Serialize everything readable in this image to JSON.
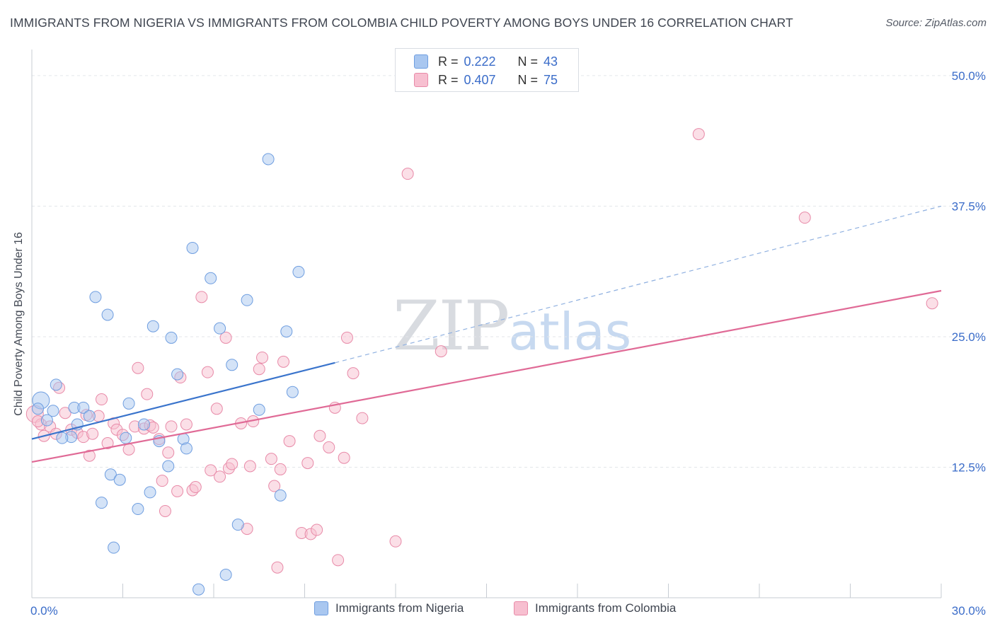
{
  "title": "IMMIGRANTS FROM NIGERIA VS IMMIGRANTS FROM COLOMBIA CHILD POVERTY AMONG BOYS UNDER 16 CORRELATION CHART",
  "source": "Source: ZipAtlas.com",
  "watermark": {
    "zip": "ZIP",
    "atlas": "atlas"
  },
  "legend_top": {
    "rows": [
      {
        "r_label": "R =",
        "r_value": "0.222",
        "n_label": "N =",
        "n_value": "43"
      },
      {
        "r_label": "R =",
        "r_value": "0.407",
        "n_label": "N =",
        "n_value": "75"
      }
    ]
  },
  "chart_data": {
    "type": "scatter",
    "title": "IMMIGRANTS FROM NIGERIA VS IMMIGRANTS FROM COLOMBIA CHILD POVERTY AMONG BOYS UNDER 16 CORRELATION CHART",
    "xlabel": "",
    "ylabel": "Child Poverty Among Boys Under 16",
    "xlim": [
      0,
      30
    ],
    "ylim": [
      0,
      52.5
    ],
    "x_tick_labels": [
      "0.0%",
      "30.0%"
    ],
    "y_tick_labels": [
      "12.5%",
      "25.0%",
      "37.5%",
      "50.0%"
    ],
    "y_tick_values": [
      12.5,
      25,
      37.5,
      50
    ],
    "grid": true,
    "legend_position": "bottom",
    "colors": {
      "nigeria_fill": "#a9c7f0",
      "nigeria_stroke": "#6f9ee0",
      "nigeria_line": "#3a74cc",
      "colombia_fill": "#f7bfd0",
      "colombia_stroke": "#e88aa8",
      "colombia_line": "#e06a96",
      "tick_label": "#3a6cc9"
    },
    "series": [
      {
        "name": "Immigrants from Nigeria",
        "r": 0.222,
        "n": 43,
        "trend": {
          "x0": 0,
          "y0": 15.2,
          "x1": 10,
          "y1": 22.5,
          "dash_to_x": 30,
          "dash_to_y": 37.5
        },
        "points": [
          [
            0.3,
            18.9
          ],
          [
            0.2,
            18.1
          ],
          [
            0.7,
            17.9
          ],
          [
            0.5,
            17.0
          ],
          [
            0.8,
            20.4
          ],
          [
            1.4,
            18.2
          ],
          [
            1.7,
            18.2
          ],
          [
            1.9,
            17.4
          ],
          [
            1.5,
            16.6
          ],
          [
            1.3,
            15.4
          ],
          [
            1.0,
            15.3
          ],
          [
            2.1,
            28.8
          ],
          [
            2.5,
            27.1
          ],
          [
            3.2,
            18.6
          ],
          [
            3.7,
            16.6
          ],
          [
            3.1,
            15.3
          ],
          [
            4.2,
            15.0
          ],
          [
            4.0,
            26.0
          ],
          [
            4.6,
            24.9
          ],
          [
            4.8,
            21.4
          ],
          [
            4.5,
            12.6
          ],
          [
            5.0,
            15.2
          ],
          [
            5.1,
            14.3
          ],
          [
            5.3,
            33.5
          ],
          [
            5.9,
            30.6
          ],
          [
            6.2,
            25.8
          ],
          [
            6.6,
            22.3
          ],
          [
            7.1,
            28.5
          ],
          [
            7.5,
            18.0
          ],
          [
            7.8,
            42.0
          ],
          [
            8.4,
            25.5
          ],
          [
            8.6,
            19.7
          ],
          [
            8.8,
            31.2
          ],
          [
            8.2,
            9.8
          ],
          [
            2.6,
            11.8
          ],
          [
            2.9,
            11.3
          ],
          [
            3.9,
            10.1
          ],
          [
            2.3,
            9.1
          ],
          [
            3.5,
            8.5
          ],
          [
            2.7,
            4.8
          ],
          [
            6.8,
            7.0
          ],
          [
            6.4,
            2.2
          ],
          [
            5.5,
            0.8
          ]
        ]
      },
      {
        "name": "Immigrants from Colombia",
        "r": 0.407,
        "n": 75,
        "trend": {
          "x0": 0,
          "y0": 13.0,
          "x1": 30,
          "y1": 29.4
        },
        "points": [
          [
            0.1,
            17.6
          ],
          [
            0.3,
            16.6
          ],
          [
            0.4,
            15.5
          ],
          [
            0.6,
            16.4
          ],
          [
            0.8,
            15.7
          ],
          [
            0.9,
            20.1
          ],
          [
            1.1,
            17.7
          ],
          [
            1.3,
            16.1
          ],
          [
            1.5,
            15.8
          ],
          [
            1.7,
            15.4
          ],
          [
            1.8,
            17.5
          ],
          [
            1.9,
            13.6
          ],
          [
            2.0,
            15.7
          ],
          [
            2.2,
            17.4
          ],
          [
            2.3,
            19.0
          ],
          [
            2.5,
            14.8
          ],
          [
            2.7,
            16.7
          ],
          [
            2.8,
            16.1
          ],
          [
            3.0,
            15.6
          ],
          [
            3.2,
            14.2
          ],
          [
            3.4,
            16.4
          ],
          [
            3.5,
            22.0
          ],
          [
            3.7,
            16.2
          ],
          [
            3.8,
            19.5
          ],
          [
            3.9,
            16.5
          ],
          [
            4.0,
            16.3
          ],
          [
            4.2,
            15.2
          ],
          [
            4.3,
            11.2
          ],
          [
            4.4,
            8.3
          ],
          [
            4.5,
            13.9
          ],
          [
            4.6,
            16.4
          ],
          [
            4.8,
            10.2
          ],
          [
            4.9,
            21.1
          ],
          [
            5.1,
            16.6
          ],
          [
            5.3,
            10.3
          ],
          [
            5.4,
            10.6
          ],
          [
            5.6,
            28.8
          ],
          [
            5.8,
            21.6
          ],
          [
            5.9,
            12.2
          ],
          [
            6.1,
            18.1
          ],
          [
            6.2,
            11.6
          ],
          [
            6.4,
            24.9
          ],
          [
            6.5,
            12.4
          ],
          [
            6.6,
            12.8
          ],
          [
            6.9,
            16.7
          ],
          [
            7.1,
            6.6
          ],
          [
            7.2,
            12.6
          ],
          [
            7.3,
            16.9
          ],
          [
            7.5,
            21.9
          ],
          [
            7.6,
            23.0
          ],
          [
            7.9,
            13.3
          ],
          [
            8.0,
            10.7
          ],
          [
            8.1,
            2.9
          ],
          [
            8.2,
            12.3
          ],
          [
            8.3,
            22.6
          ],
          [
            8.5,
            15.0
          ],
          [
            8.9,
            6.2
          ],
          [
            9.1,
            12.9
          ],
          [
            9.2,
            6.1
          ],
          [
            9.4,
            6.5
          ],
          [
            9.5,
            15.5
          ],
          [
            9.8,
            14.4
          ],
          [
            10.0,
            18.2
          ],
          [
            10.1,
            3.6
          ],
          [
            10.3,
            13.4
          ],
          [
            10.4,
            24.9
          ],
          [
            10.6,
            21.5
          ],
          [
            10.9,
            17.2
          ],
          [
            12.0,
            5.4
          ],
          [
            12.4,
            40.6
          ],
          [
            13.5,
            23.6
          ],
          [
            22.0,
            44.4
          ],
          [
            25.5,
            36.4
          ],
          [
            29.7,
            28.2
          ],
          [
            0.2,
            16.9
          ]
        ]
      }
    ]
  }
}
